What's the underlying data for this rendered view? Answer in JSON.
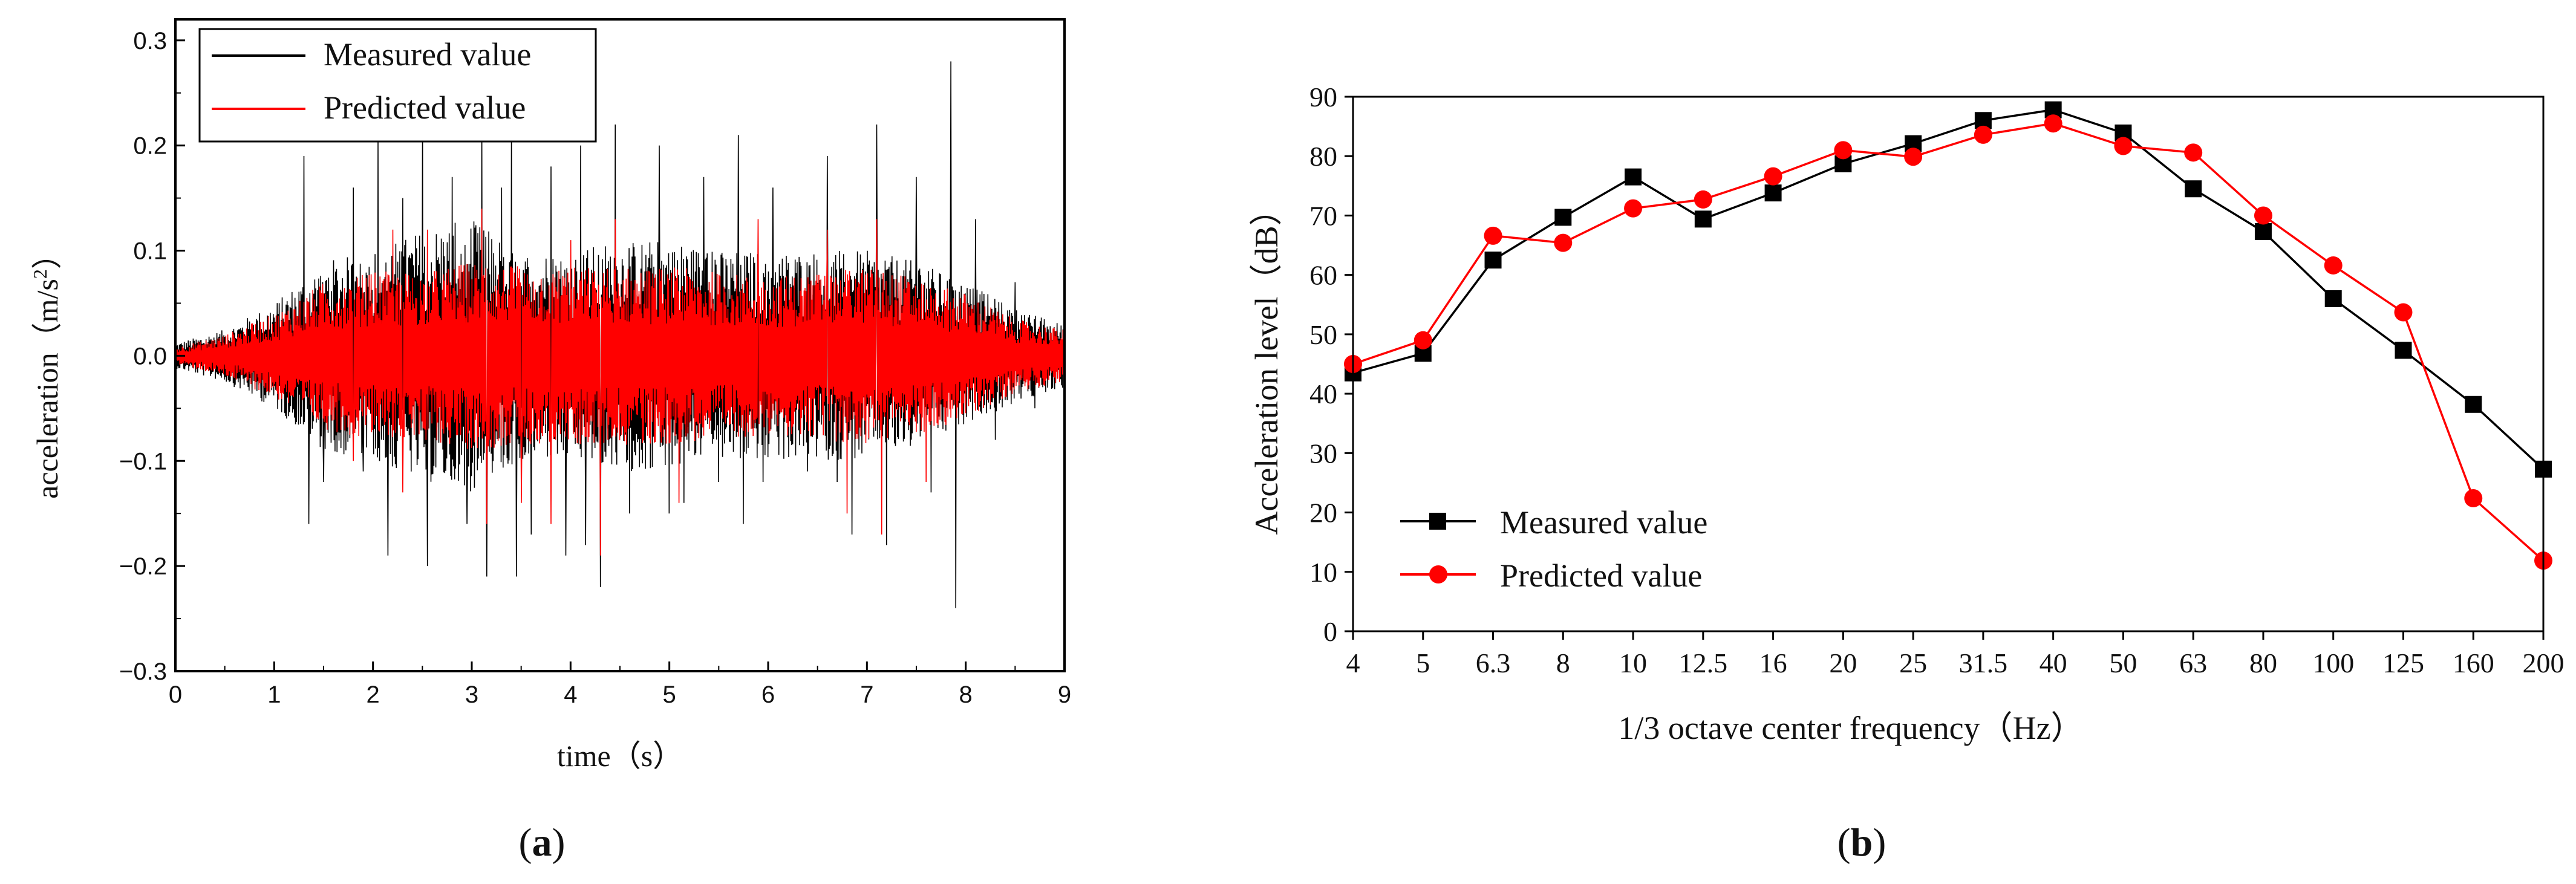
{
  "chart_data": [
    {
      "id": "a",
      "type": "line",
      "caption": {
        "open": "(",
        "letter": "a",
        "close": ")"
      },
      "xlabel": "time（s）",
      "ylabel": "acceleration（m/s",
      "ylabel_sup": "2",
      "ylabel_close": "）",
      "xlim": [
        0,
        9
      ],
      "ylim": [
        -0.3,
        0.32
      ],
      "xticks": [
        "0",
        "1",
        "2",
        "3",
        "4",
        "5",
        "6",
        "7",
        "8",
        "9"
      ],
      "xtick_values": [
        0,
        1,
        2,
        3,
        4,
        5,
        6,
        7,
        8,
        9
      ],
      "yticks": [
        "−0.3",
        "−0.2",
        "−0.1",
        "0.0",
        "0.1",
        "0.2",
        "0.3"
      ],
      "ytick_values": [
        -0.3,
        -0.2,
        -0.1,
        0.0,
        0.1,
        0.2,
        0.3
      ],
      "legend_position": "top-left",
      "series": [
        {
          "name": "Measured value",
          "color": "#000000"
        },
        {
          "name": "Predicted value",
          "color": "#ff0000"
        }
      ],
      "envelope_t": [
        0,
        0.5,
        1.0,
        1.5,
        2.0,
        2.5,
        3.0,
        3.5,
        4.0,
        4.5,
        5.0,
        5.5,
        6.0,
        6.5,
        7.0,
        7.5,
        8.0,
        8.5,
        9.0
      ],
      "envelope_measured": [
        0.012,
        0.025,
        0.05,
        0.09,
        0.1,
        0.12,
        0.13,
        0.1,
        0.1,
        0.11,
        0.11,
        0.1,
        0.1,
        0.1,
        0.1,
        0.09,
        0.07,
        0.045,
        0.03
      ],
      "envelope_predicted": [
        0.008,
        0.02,
        0.04,
        0.07,
        0.08,
        0.08,
        0.09,
        0.085,
        0.085,
        0.085,
        0.085,
        0.08,
        0.075,
        0.08,
        0.085,
        0.075,
        0.06,
        0.035,
        0.025
      ],
      "spikes_measured": [
        [
          1.3,
          0.19
        ],
        [
          1.35,
          -0.16
        ],
        [
          1.5,
          -0.12
        ],
        [
          1.8,
          0.16
        ],
        [
          1.9,
          -0.11
        ],
        [
          2.05,
          0.21
        ],
        [
          2.15,
          -0.19
        ],
        [
          2.3,
          0.15
        ],
        [
          2.5,
          0.22
        ],
        [
          2.55,
          -0.2
        ],
        [
          2.8,
          0.17
        ],
        [
          2.95,
          -0.16
        ],
        [
          3.1,
          0.23
        ],
        [
          3.15,
          -0.21
        ],
        [
          3.3,
          0.16
        ],
        [
          3.4,
          0.22
        ],
        [
          3.45,
          -0.21
        ],
        [
          3.6,
          -0.17
        ],
        [
          3.8,
          0.18
        ],
        [
          3.95,
          -0.19
        ],
        [
          4.1,
          0.2
        ],
        [
          4.15,
          -0.18
        ],
        [
          4.3,
          -0.22
        ],
        [
          4.45,
          0.22
        ],
        [
          4.6,
          -0.15
        ],
        [
          4.9,
          0.2
        ],
        [
          5.0,
          -0.15
        ],
        [
          5.15,
          -0.14
        ],
        [
          5.35,
          0.17
        ],
        [
          5.5,
          -0.12
        ],
        [
          5.7,
          0.21
        ],
        [
          5.75,
          -0.16
        ],
        [
          5.95,
          -0.12
        ],
        [
          6.05,
          0.16
        ],
        [
          6.4,
          -0.11
        ],
        [
          6.6,
          0.19
        ],
        [
          6.7,
          -0.12
        ],
        [
          6.85,
          -0.17
        ],
        [
          7.1,
          0.22
        ],
        [
          7.2,
          -0.18
        ],
        [
          7.5,
          0.17
        ],
        [
          7.65,
          -0.13
        ],
        [
          7.85,
          0.28
        ],
        [
          7.9,
          -0.24
        ],
        [
          8.1,
          0.13
        ],
        [
          8.3,
          -0.08
        ],
        [
          8.5,
          0.07
        ],
        [
          8.7,
          -0.05
        ]
      ],
      "spikes_predicted": [
        [
          1.8,
          -0.1
        ],
        [
          2.2,
          0.12
        ],
        [
          2.3,
          -0.13
        ],
        [
          2.55,
          0.12
        ],
        [
          3.1,
          0.14
        ],
        [
          3.15,
          -0.16
        ],
        [
          3.5,
          -0.14
        ],
        [
          3.8,
          -0.16
        ],
        [
          4.0,
          0.11
        ],
        [
          4.3,
          -0.19
        ],
        [
          4.45,
          0.13
        ],
        [
          5.1,
          -0.14
        ],
        [
          5.9,
          0.13
        ],
        [
          6.6,
          0.12
        ],
        [
          6.8,
          -0.15
        ],
        [
          7.1,
          0.13
        ],
        [
          7.15,
          -0.17
        ],
        [
          7.6,
          -0.12
        ]
      ]
    },
    {
      "id": "b",
      "type": "line",
      "caption": {
        "open": "(",
        "letter": "b",
        "close": ")"
      },
      "xlabel": "1/3 octave center frequency（Hz）",
      "ylabel": "Acceleration level（dB）",
      "ylim": [
        0,
        90
      ],
      "yticks": [
        "0",
        "10",
        "20",
        "30",
        "40",
        "50",
        "60",
        "70",
        "80",
        "90"
      ],
      "ytick_values": [
        0,
        10,
        20,
        30,
        40,
        50,
        60,
        70,
        80,
        90
      ],
      "categories": [
        "4",
        "5",
        "6.3",
        "8",
        "10",
        "12.5",
        "16",
        "20",
        "25",
        "31.5",
        "40",
        "50",
        "63",
        "80",
        "100",
        "125",
        "160",
        "200"
      ],
      "legend_position": "bottom-left",
      "series": [
        {
          "name": "Measured value",
          "color": "#000000",
          "marker": "square",
          "values": [
            43.5,
            46.8,
            62.5,
            69.7,
            76.5,
            69.4,
            73.8,
            78.7,
            82.1,
            86.0,
            87.8,
            83.9,
            74.5,
            67.3,
            56.0,
            47.3,
            38.2,
            27.3
          ]
        },
        {
          "name": "Predicted value",
          "color": "#ff0000",
          "marker": "circle",
          "values": [
            45.0,
            49.0,
            66.6,
            65.4,
            71.2,
            72.7,
            76.6,
            81.0,
            79.9,
            83.6,
            85.5,
            81.7,
            80.6,
            70.0,
            61.6,
            53.7,
            22.4,
            11.9
          ]
        }
      ]
    }
  ]
}
